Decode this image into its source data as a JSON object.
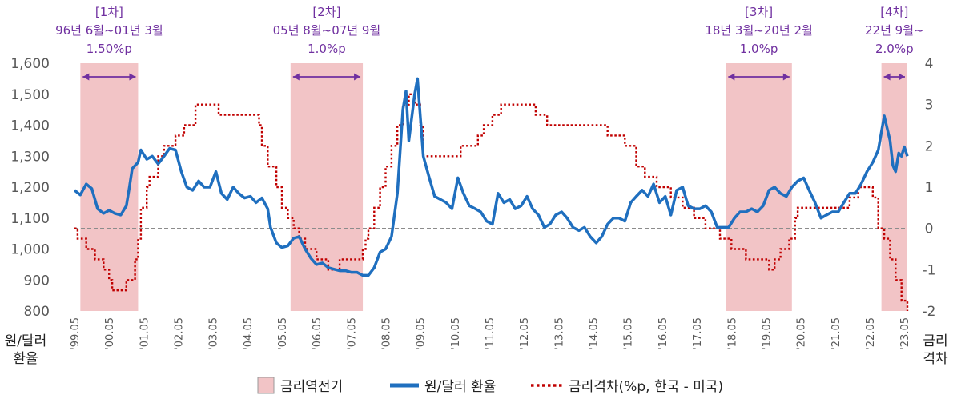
{
  "chart_data": {
    "type": "line",
    "ylabel_left": [
      "원/달러",
      "환율"
    ],
    "ylabel_right": [
      "금리",
      "격차"
    ],
    "y_left_range": [
      800,
      1600
    ],
    "y_left_ticks": [
      "800",
      "900",
      "1,000",
      "1,100",
      "1,200",
      "1,300",
      "1,400",
      "1,500",
      "1,600"
    ],
    "y_right_range": [
      -2,
      4
    ],
    "y_right_ticks": [
      "-2",
      "-1",
      "0",
      "1",
      "2",
      "3",
      "4"
    ],
    "x_range": [
      1999.33,
      2023.42
    ],
    "x_ticks": [
      "'99.05",
      "'00.05",
      "'01.05",
      "'02.05",
      "'03.05",
      "'04.05",
      "'05.05",
      "'06.05",
      "'07.05",
      "'08.05",
      "'09.05",
      "'10.05",
      "'11.05",
      "'12.05",
      "'13.05",
      "'14.05",
      "'15.05",
      "'16.05",
      "'17.05",
      "'18.05",
      "'19.05",
      "'20.05",
      "'21.05",
      "'22.05",
      "'23.05"
    ],
    "reference_line_right": 0,
    "inversion_periods": [
      {
        "label": "[1차]",
        "period": "96년 6월~01년 3월",
        "gap": "1.50%p",
        "start": 1999.5,
        "end": 2001.17
      },
      {
        "label": "[2차]",
        "period": "05년 8월~07년 9월",
        "gap": "1.0%p",
        "start": 2005.58,
        "end": 2007.67
      },
      {
        "label": "[3차]",
        "period": "18년 3월~20년 2월",
        "gap": "1.0%p",
        "start": 2018.17,
        "end": 2020.08
      },
      {
        "label": "[4차]",
        "period": "22년 9월~",
        "gap": "2.0%p",
        "start": 2022.67,
        "end": 2023.5
      }
    ],
    "legend": {
      "shade": "금리역전기",
      "exchange_rate": "원/달러 환율",
      "rate_gap": "금리격차(%p, 한국 - 미국)"
    },
    "colors": {
      "shade": "#f2c4c6",
      "exchange_rate": "#1f6fbf",
      "rate_gap": "#c00000",
      "period_label": "#7030a0",
      "reference": "#8c8c8c"
    },
    "series": [
      {
        "key": "exchange_rate",
        "axis": "left",
        "points": [
          [
            1999.33,
            1190
          ],
          [
            1999.5,
            1175
          ],
          [
            1999.67,
            1210
          ],
          [
            1999.83,
            1195
          ],
          [
            2000.0,
            1130
          ],
          [
            2000.17,
            1115
          ],
          [
            2000.33,
            1125
          ],
          [
            2000.5,
            1115
          ],
          [
            2000.67,
            1110
          ],
          [
            2000.83,
            1140
          ],
          [
            2000.92,
            1200
          ],
          [
            2001.0,
            1260
          ],
          [
            2001.17,
            1280
          ],
          [
            2001.25,
            1320
          ],
          [
            2001.42,
            1290
          ],
          [
            2001.58,
            1300
          ],
          [
            2001.75,
            1275
          ],
          [
            2001.92,
            1300
          ],
          [
            2002.08,
            1325
          ],
          [
            2002.25,
            1320
          ],
          [
            2002.42,
            1250
          ],
          [
            2002.58,
            1200
          ],
          [
            2002.75,
            1190
          ],
          [
            2002.92,
            1220
          ],
          [
            2003.08,
            1200
          ],
          [
            2003.25,
            1200
          ],
          [
            2003.42,
            1250
          ],
          [
            2003.58,
            1180
          ],
          [
            2003.75,
            1160
          ],
          [
            2003.92,
            1200
          ],
          [
            2004.08,
            1180
          ],
          [
            2004.25,
            1165
          ],
          [
            2004.42,
            1170
          ],
          [
            2004.58,
            1150
          ],
          [
            2004.75,
            1165
          ],
          [
            2004.92,
            1130
          ],
          [
            2005.0,
            1070
          ],
          [
            2005.17,
            1020
          ],
          [
            2005.33,
            1005
          ],
          [
            2005.5,
            1010
          ],
          [
            2005.67,
            1035
          ],
          [
            2005.83,
            1040
          ],
          [
            2006.0,
            1000
          ],
          [
            2006.17,
            970
          ],
          [
            2006.33,
            950
          ],
          [
            2006.5,
            955
          ],
          [
            2006.67,
            940
          ],
          [
            2006.83,
            935
          ],
          [
            2007.0,
            930
          ],
          [
            2007.17,
            930
          ],
          [
            2007.33,
            925
          ],
          [
            2007.5,
            925
          ],
          [
            2007.67,
            915
          ],
          [
            2007.83,
            915
          ],
          [
            2008.0,
            940
          ],
          [
            2008.17,
            990
          ],
          [
            2008.33,
            1000
          ],
          [
            2008.5,
            1040
          ],
          [
            2008.67,
            1180
          ],
          [
            2008.83,
            1450
          ],
          [
            2008.92,
            1510
          ],
          [
            2009.0,
            1350
          ],
          [
            2009.17,
            1500
          ],
          [
            2009.25,
            1550
          ],
          [
            2009.42,
            1300
          ],
          [
            2009.58,
            1235
          ],
          [
            2009.75,
            1170
          ],
          [
            2009.92,
            1160
          ],
          [
            2010.08,
            1150
          ],
          [
            2010.25,
            1130
          ],
          [
            2010.42,
            1230
          ],
          [
            2010.58,
            1180
          ],
          [
            2010.75,
            1140
          ],
          [
            2010.92,
            1130
          ],
          [
            2011.08,
            1120
          ],
          [
            2011.25,
            1090
          ],
          [
            2011.42,
            1080
          ],
          [
            2011.58,
            1180
          ],
          [
            2011.75,
            1150
          ],
          [
            2011.92,
            1160
          ],
          [
            2012.08,
            1130
          ],
          [
            2012.25,
            1140
          ],
          [
            2012.42,
            1170
          ],
          [
            2012.58,
            1130
          ],
          [
            2012.75,
            1110
          ],
          [
            2012.92,
            1070
          ],
          [
            2013.08,
            1080
          ],
          [
            2013.25,
            1110
          ],
          [
            2013.42,
            1120
          ],
          [
            2013.58,
            1100
          ],
          [
            2013.75,
            1070
          ],
          [
            2013.92,
            1060
          ],
          [
            2014.08,
            1070
          ],
          [
            2014.25,
            1040
          ],
          [
            2014.42,
            1020
          ],
          [
            2014.58,
            1040
          ],
          [
            2014.75,
            1080
          ],
          [
            2014.92,
            1100
          ],
          [
            2015.08,
            1100
          ],
          [
            2015.25,
            1090
          ],
          [
            2015.42,
            1150
          ],
          [
            2015.58,
            1170
          ],
          [
            2015.75,
            1190
          ],
          [
            2015.92,
            1170
          ],
          [
            2016.08,
            1210
          ],
          [
            2016.25,
            1150
          ],
          [
            2016.42,
            1170
          ],
          [
            2016.58,
            1110
          ],
          [
            2016.75,
            1190
          ],
          [
            2016.92,
            1200
          ],
          [
            2017.08,
            1140
          ],
          [
            2017.25,
            1130
          ],
          [
            2017.42,
            1130
          ],
          [
            2017.58,
            1140
          ],
          [
            2017.75,
            1120
          ],
          [
            2017.92,
            1070
          ],
          [
            2018.08,
            1070
          ],
          [
            2018.25,
            1070
          ],
          [
            2018.42,
            1100
          ],
          [
            2018.58,
            1120
          ],
          [
            2018.75,
            1120
          ],
          [
            2018.92,
            1130
          ],
          [
            2019.08,
            1120
          ],
          [
            2019.25,
            1140
          ],
          [
            2019.42,
            1190
          ],
          [
            2019.58,
            1200
          ],
          [
            2019.75,
            1180
          ],
          [
            2019.92,
            1170
          ],
          [
            2020.08,
            1200
          ],
          [
            2020.25,
            1220
          ],
          [
            2020.42,
            1230
          ],
          [
            2020.58,
            1190
          ],
          [
            2020.75,
            1150
          ],
          [
            2020.92,
            1100
          ],
          [
            2021.08,
            1110
          ],
          [
            2021.25,
            1120
          ],
          [
            2021.42,
            1120
          ],
          [
            2021.58,
            1150
          ],
          [
            2021.75,
            1180
          ],
          [
            2021.92,
            1180
          ],
          [
            2022.08,
            1210
          ],
          [
            2022.25,
            1250
          ],
          [
            2022.42,
            1280
          ],
          [
            2022.58,
            1320
          ],
          [
            2022.75,
            1430
          ],
          [
            2022.92,
            1350
          ],
          [
            2023.0,
            1270
          ],
          [
            2023.08,
            1250
          ],
          [
            2023.17,
            1310
          ],
          [
            2023.25,
            1300
          ],
          [
            2023.33,
            1330
          ],
          [
            2023.42,
            1300
          ]
        ]
      },
      {
        "key": "rate_gap",
        "axis": "right",
        "points": [
          [
            1999.33,
            0
          ],
          [
            1999.42,
            -0.25
          ],
          [
            1999.58,
            -0.25
          ],
          [
            1999.67,
            -0.5
          ],
          [
            1999.83,
            -0.5
          ],
          [
            1999.92,
            -0.75
          ],
          [
            2000.08,
            -0.75
          ],
          [
            2000.17,
            -1.0
          ],
          [
            2000.33,
            -1.25
          ],
          [
            2000.42,
            -1.5
          ],
          [
            2000.75,
            -1.5
          ],
          [
            2000.83,
            -1.25
          ],
          [
            2001.0,
            -1.25
          ],
          [
            2001.08,
            -0.75
          ],
          [
            2001.17,
            -0.25
          ],
          [
            2001.25,
            0.5
          ],
          [
            2001.42,
            1.0
          ],
          [
            2001.5,
            1.25
          ],
          [
            2001.67,
            1.25
          ],
          [
            2001.75,
            1.75
          ],
          [
            2001.92,
            2.0
          ],
          [
            2002.25,
            2.25
          ],
          [
            2002.5,
            2.5
          ],
          [
            2002.75,
            2.5
          ],
          [
            2002.83,
            3.0
          ],
          [
            2003.42,
            3.0
          ],
          [
            2003.5,
            2.75
          ],
          [
            2004.5,
            2.75
          ],
          [
            2004.67,
            2.5
          ],
          [
            2004.75,
            2.0
          ],
          [
            2004.92,
            1.5
          ],
          [
            2005.17,
            1.0
          ],
          [
            2005.33,
            0.5
          ],
          [
            2005.5,
            0.25
          ],
          [
            2005.67,
            0
          ],
          [
            2005.83,
            -0.25
          ],
          [
            2006.0,
            -0.5
          ],
          [
            2006.17,
            -0.5
          ],
          [
            2006.33,
            -0.75
          ],
          [
            2006.5,
            -0.75
          ],
          [
            2006.67,
            -1.0
          ],
          [
            2006.92,
            -1.0
          ],
          [
            2007.0,
            -0.75
          ],
          [
            2007.58,
            -0.75
          ],
          [
            2007.67,
            -0.5
          ],
          [
            2007.75,
            -0.25
          ],
          [
            2007.83,
            0
          ],
          [
            2008.0,
            0.5
          ],
          [
            2008.17,
            1.0
          ],
          [
            2008.33,
            1.5
          ],
          [
            2008.5,
            2.0
          ],
          [
            2008.67,
            2.5
          ],
          [
            2008.83,
            3.0
          ],
          [
            2009.0,
            3.25
          ],
          [
            2009.17,
            3.0
          ],
          [
            2009.33,
            2.5
          ],
          [
            2009.42,
            1.75
          ],
          [
            2010.33,
            1.75
          ],
          [
            2010.5,
            2.0
          ],
          [
            2011.0,
            2.25
          ],
          [
            2011.17,
            2.5
          ],
          [
            2011.42,
            2.75
          ],
          [
            2011.67,
            3.0
          ],
          [
            2012.58,
            3.0
          ],
          [
            2012.67,
            2.75
          ],
          [
            2013.0,
            2.5
          ],
          [
            2014.58,
            2.5
          ],
          [
            2014.75,
            2.25
          ],
          [
            2015.25,
            2.0
          ],
          [
            2015.58,
            1.5
          ],
          [
            2015.83,
            1.25
          ],
          [
            2016.17,
            1.0
          ],
          [
            2016.58,
            0.75
          ],
          [
            2016.92,
            0.5
          ],
          [
            2017.25,
            0.25
          ],
          [
            2017.58,
            0
          ],
          [
            2018.0,
            -0.25
          ],
          [
            2018.33,
            -0.5
          ],
          [
            2018.58,
            -0.5
          ],
          [
            2018.75,
            -0.75
          ],
          [
            2018.92,
            -0.75
          ],
          [
            2019.25,
            -0.75
          ],
          [
            2019.42,
            -1.0
          ],
          [
            2019.58,
            -0.75
          ],
          [
            2019.75,
            -0.5
          ],
          [
            2020.0,
            -0.25
          ],
          [
            2020.17,
            0.25
          ],
          [
            2020.25,
            0.5
          ],
          [
            2021.58,
            0.5
          ],
          [
            2021.75,
            0.75
          ],
          [
            2022.0,
            1.0
          ],
          [
            2022.25,
            1.0
          ],
          [
            2022.42,
            0.75
          ],
          [
            2022.58,
            0
          ],
          [
            2022.75,
            -0.25
          ],
          [
            2022.92,
            -0.75
          ],
          [
            2023.08,
            -1.25
          ],
          [
            2023.25,
            -1.75
          ],
          [
            2023.42,
            -2.0
          ]
        ]
      }
    ]
  }
}
